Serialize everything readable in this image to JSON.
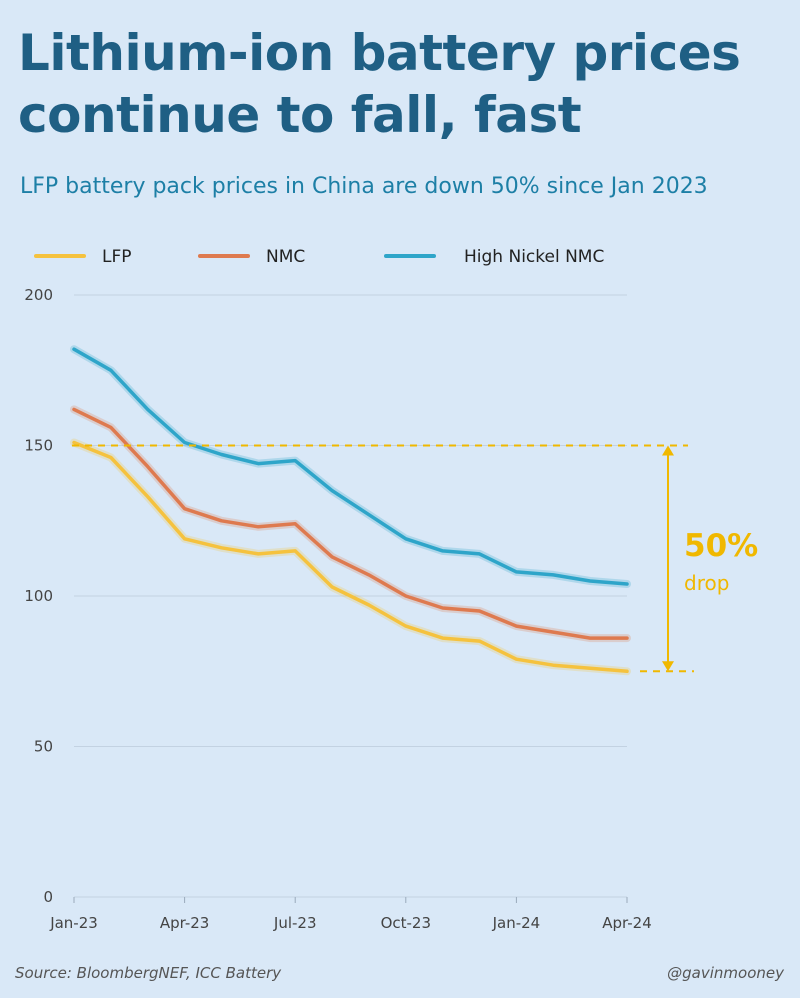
{
  "title": "Lithium-ion battery prices continue to fall, fast",
  "subtitle": "LFP battery pack prices in China are down 50% since Jan 2023",
  "footer": {
    "source": "Source: BloombergNEF, ICC Battery",
    "handle": "@gavinmooney"
  },
  "colors": {
    "background": "#d9e8f7",
    "LFP": "#f5c23e",
    "NMC": "#de7a4f",
    "High Nickel NMC": "#2ea5c9",
    "annotation": "#f0b800",
    "grid": "#c3d2e2"
  },
  "chart_data": {
    "type": "line",
    "title": "",
    "xlabel": "",
    "ylabel": "",
    "ylim": [
      0,
      200
    ],
    "yticks": [
      "0",
      "50",
      "100",
      "150",
      "200"
    ],
    "grid": "horizontal",
    "legend": "top",
    "x": [
      "Jan-23",
      "Feb-23",
      "Mar-23",
      "Apr-23",
      "May-23",
      "Jun-23",
      "Jul-23",
      "Aug-23",
      "Sep-23",
      "Oct-23",
      "Nov-23",
      "Dec-23",
      "Jan-24",
      "Feb-24",
      "Mar-24",
      "Apr-24"
    ],
    "xticks": [
      "Jan-23",
      "Apr-23",
      "Jul-23",
      "Oct-23",
      "Jan-24",
      "Apr-24"
    ],
    "series": [
      {
        "name": "LFP",
        "values": [
          151,
          146,
          133,
          119,
          116,
          114,
          115,
          103,
          97,
          90,
          86,
          85,
          79,
          77,
          76,
          75
        ]
      },
      {
        "name": "NMC",
        "values": [
          162,
          156,
          143,
          129,
          125,
          123,
          124,
          113,
          107,
          100,
          96,
          95,
          90,
          88,
          86,
          86
        ]
      },
      {
        "name": "High Nickel NMC",
        "values": [
          182,
          175,
          162,
          151,
          147,
          144,
          145,
          135,
          127,
          119,
          115,
          114,
          108,
          107,
          105,
          104
        ]
      }
    ],
    "annotation": {
      "value": "50%",
      "label": "drop",
      "from": 150,
      "to": 75
    }
  }
}
